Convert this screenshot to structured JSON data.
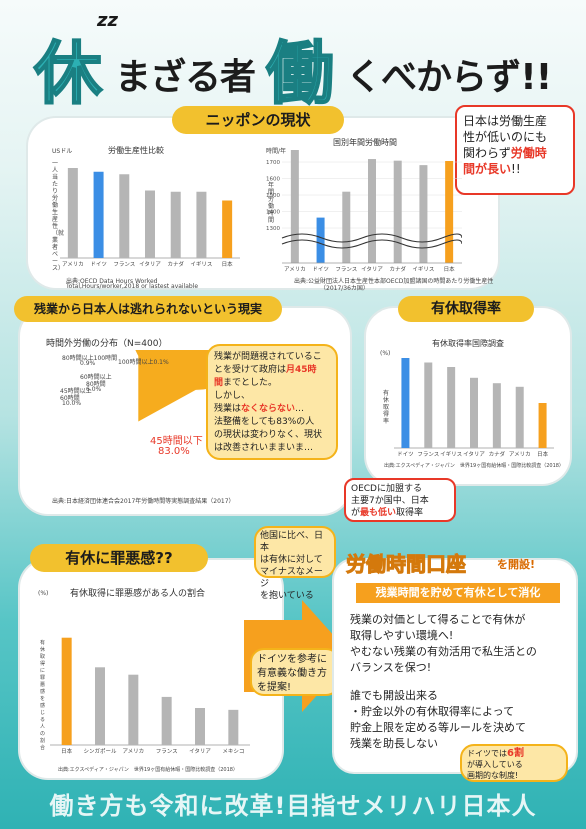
{
  "title": {
    "zz": "zz",
    "kanji1": "休",
    "part1": "まざる者",
    "kanji2": "働",
    "part2": "くべからず!!"
  },
  "section1": {
    "banner": "ニッポンの現状",
    "callout": [
      "日本は労働生産",
      "性が低いのにも",
      "関わらず",
      "労働時",
      "間が長い",
      "!!"
    ]
  },
  "chart1": {
    "type": "bar",
    "title": "労働生産性比較",
    "unit": "USドル",
    "ylabel": "一人当たり労働生産性（就業者ベース）",
    "categories": [
      "アメリカ",
      "ドイツ",
      "フランス",
      "イタリア",
      "カナダ",
      "イギリス",
      "日本"
    ],
    "values": [
      72,
      69,
      67,
      54,
      53,
      53,
      46
    ],
    "source": [
      "出典:OECD Data Hours Worked",
      "Total,Hours/worker,2018 or lastest available"
    ]
  },
  "chart2": {
    "type": "bar",
    "title": "国別年間労働時間",
    "unit": "時間/年",
    "ylabel": "年間労働時間",
    "ticks": [
      "1700",
      "1600",
      "1500",
      "1400",
      "1300"
    ],
    "categories": [
      "アメリカ",
      "ドイツ",
      "フランス",
      "イタリア",
      "カナダ",
      "イギリス",
      "日本"
    ],
    "values": [
      1786,
      1363,
      1520,
      1718,
      1708,
      1681,
      1706
    ],
    "source": [
      "出典:公益財団法人日本生産性本部OECD加盟諸国の時間あたり労働生産性",
      "（2017/36カ国）"
    ]
  },
  "section2": {
    "banner": "残業から日本人は逃れられないという現実"
  },
  "chart3": {
    "type": "pie",
    "title": "時間外労働の分布（N=400）",
    "slices": [
      {
        "name": "100時間以上",
        "value": 0.1,
        "label": "100時間以上0.1%"
      },
      {
        "name": "80時間から100時間",
        "value": 0.9,
        "label": [
          "80時間以上100時間",
          "0.9%"
        ]
      },
      {
        "name": "60時間以上80時間",
        "value": 6.0,
        "label": [
          "60時間以上",
          "80時間",
          "6.0%"
        ]
      },
      {
        "name": "45時間以上60時間",
        "value": 10.0,
        "label": [
          "45時間以上",
          "60時間",
          "10.0%"
        ]
      },
      {
        "name": "45時間以下",
        "value": 83.0,
        "label": [
          "45時間以下",
          "83.0%"
        ]
      }
    ],
    "source": "出典:日本経済団体連合会2017年労働時間等実態調査結果（2017）",
    "colors": [
      "#fff0b3",
      "#fff6c8",
      "#ffe58a",
      "#fbd25b",
      "#f6ac1e"
    ]
  },
  "bubble2": {
    "lines": [
      "残業が問題視されているこ",
      "とを受けて政府は",
      "月45時",
      "間",
      "までとした。",
      "しかし、",
      "残業は",
      "なくならない",
      "…",
      "法整備をしても83%の人",
      "の現状は変わりなく、現状",
      "は改善されいままいま…"
    ]
  },
  "section3": {
    "banner": "有休取得率",
    "callout": [
      "OECDに加盟する",
      "主要7か国中、日本",
      "が",
      "最も低い",
      "取得率"
    ]
  },
  "chart4": {
    "type": "bar",
    "title": "有休取得率国際調査",
    "unit": "(%)",
    "ylabel": "有休取得率",
    "categories": [
      "ドイツ",
      "フランス",
      "イギリス",
      "イタリア",
      "カナダ",
      "アメリカ",
      "日本"
    ],
    "values": [
      100,
      95,
      90,
      78,
      72,
      68,
      50
    ],
    "source": "出典:エクスペディア・ジャパン　世界19ヶ国有給休暇・国際比較調査（2018）"
  },
  "section4": {
    "banner": "有休に罪悪感??",
    "callout": [
      "他国に比べ、日本",
      "は有休に対して",
      "マイナスなメージ",
      "を抱いている"
    ]
  },
  "chart5": {
    "type": "bar",
    "title": "有休取得に罪悪感がある人の割合",
    "unit": "(%)",
    "ylabel": "有休取得に罪悪感を感じる人の割合",
    "categories": [
      "日本",
      "シンガポール",
      "アメリカ",
      "フランス",
      "イタリア",
      "メキシコ"
    ],
    "values": [
      58,
      42,
      38,
      26,
      20,
      19
    ],
    "source": "出典:エクスペディア・ジャパン　世界19ヶ国有給休暇・国際比較調査（2018）"
  },
  "arrow": {
    "text": [
      "ドイツを参考に",
      "有意義な働き方",
      "を提案!"
    ]
  },
  "proposal": {
    "title": "労働時間口座",
    "suffix": "を開設!",
    "subtitle": "残業時間を貯めて有休として消化",
    "body": [
      "残業の対価として得ることで有休が",
      "取得しやすい環境へ!",
      "やむない残業の有効活用で私生活との",
      "バランスを保つ!"
    ],
    "body2": [
      "誰でも開設出来る",
      "・貯金以外の有休取得率によって",
      "貯金上限を定める等ルールを決めて",
      "残業を助長しない"
    ],
    "note": [
      "ドイツでは",
      "6割",
      "が導入している",
      "画期的な制度!"
    ]
  },
  "footer": "働き方も令和に改革!目指せメリハリ日本人",
  "colors": {
    "teal": "#2cb0b3",
    "yellow": "#f2c12e",
    "orange": "#f6a01e",
    "blue": "#3b8ee5",
    "gray": "#b5b5b5",
    "red": "#e83828"
  }
}
